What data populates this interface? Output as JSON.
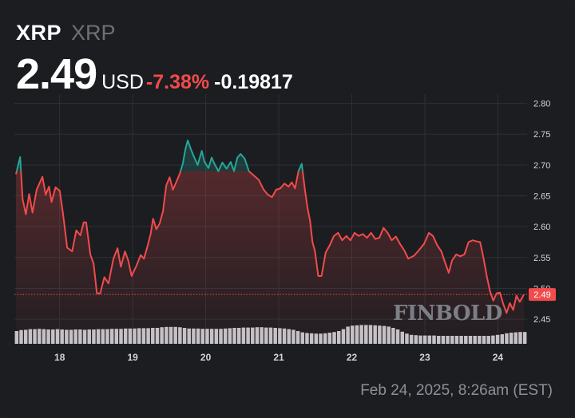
{
  "header": {
    "symbol": "XRP",
    "name": "XRP",
    "price": "2.49",
    "currency": "USD",
    "change_pct": "-7.38%",
    "change_abs": "-0.19817"
  },
  "footer": {
    "timestamp": "Feb 24, 2025, 8:26am (EST)"
  },
  "watermark": "FINBOLD",
  "colors": {
    "up": "#26a69a",
    "down": "#f24b4b",
    "volume": "#d4d4d8",
    "grid": "#2e3036",
    "text": "#d1d4dc",
    "background": "#1c1d21"
  },
  "chart_data": {
    "type": "line",
    "xlabel": "",
    "ylabel": "",
    "ylim": [
      2.41,
      2.815
    ],
    "xlim": [
      17.38,
      24.4
    ],
    "y_ticks": [
      2.45,
      2.5,
      2.55,
      2.6,
      2.65,
      2.7,
      2.75,
      2.8
    ],
    "y_tick_labels": [
      "2.45",
      "2.50",
      "2.55",
      "2.60",
      "2.65",
      "2.70",
      "2.75",
      "2.80"
    ],
    "x_ticks": [
      18,
      19,
      20,
      21,
      22,
      23,
      24
    ],
    "x_tick_labels": [
      "18",
      "19",
      "20",
      "21",
      "22",
      "23",
      "24"
    ],
    "reference_value": 2.69,
    "last_value": 2.49,
    "last_value_label": "2.49",
    "grid": true,
    "series": [
      {
        "values": [
          [
            17.4,
            2.685
          ],
          [
            17.45,
            2.713
          ],
          [
            17.48,
            2.645
          ],
          [
            17.52,
            2.62
          ],
          [
            17.56,
            2.653
          ],
          [
            17.6,
            2.623
          ],
          [
            17.65,
            2.66
          ],
          [
            17.72,
            2.681
          ],
          [
            17.76,
            2.652
          ],
          [
            17.8,
            2.665
          ],
          [
            17.83,
            2.64
          ],
          [
            17.88,
            2.664
          ],
          [
            17.93,
            2.658
          ],
          [
            17.97,
            2.621
          ],
          [
            18.02,
            2.566
          ],
          [
            18.08,
            2.56
          ],
          [
            18.13,
            2.594
          ],
          [
            18.18,
            2.586
          ],
          [
            18.22,
            2.607
          ],
          [
            18.25,
            2.607
          ],
          [
            18.3,
            2.555
          ],
          [
            18.34,
            2.54
          ],
          [
            18.38,
            2.492
          ],
          [
            18.42,
            2.492
          ],
          [
            18.47,
            2.518
          ],
          [
            18.52,
            2.508
          ],
          [
            18.58,
            2.548
          ],
          [
            18.63,
            2.565
          ],
          [
            18.67,
            2.535
          ],
          [
            18.72,
            2.56
          ],
          [
            18.76,
            2.545
          ],
          [
            18.8,
            2.52
          ],
          [
            18.86,
            2.537
          ],
          [
            18.91,
            2.554
          ],
          [
            18.95,
            2.548
          ],
          [
            19.0,
            2.572
          ],
          [
            19.03,
            2.588
          ],
          [
            19.06,
            2.613
          ],
          [
            19.1,
            2.596
          ],
          [
            19.14,
            2.605
          ],
          [
            19.18,
            2.625
          ],
          [
            19.22,
            2.667
          ],
          [
            19.26,
            2.68
          ],
          [
            19.3,
            2.66
          ],
          [
            19.34,
            2.672
          ],
          [
            19.38,
            2.685
          ],
          [
            19.42,
            2.702
          ],
          [
            19.45,
            2.725
          ],
          [
            19.48,
            2.74
          ],
          [
            19.52,
            2.725
          ],
          [
            19.56,
            2.712
          ],
          [
            19.6,
            2.7
          ],
          [
            19.65,
            2.723
          ],
          [
            19.68,
            2.706
          ],
          [
            19.73,
            2.695
          ],
          [
            19.77,
            2.712
          ],
          [
            19.8,
            2.703
          ],
          [
            19.85,
            2.69
          ],
          [
            19.9,
            2.704
          ],
          [
            19.95,
            2.694
          ],
          [
            20.0,
            2.705
          ],
          [
            20.04,
            2.69
          ],
          [
            20.08,
            2.712
          ],
          [
            20.12,
            2.718
          ],
          [
            20.17,
            2.71
          ],
          [
            20.22,
            2.69
          ],
          [
            20.28,
            2.683
          ],
          [
            20.34,
            2.676
          ],
          [
            20.4,
            2.66
          ],
          [
            20.45,
            2.652
          ],
          [
            20.5,
            2.648
          ],
          [
            20.55,
            2.66
          ],
          [
            20.6,
            2.662
          ],
          [
            20.65,
            2.67
          ],
          [
            20.7,
            2.665
          ],
          [
            20.74,
            2.672
          ],
          [
            20.78,
            2.662
          ],
          [
            20.82,
            2.69
          ],
          [
            20.86,
            2.702
          ],
          [
            20.9,
            2.658
          ],
          [
            20.93,
            2.63
          ],
          [
            20.96,
            2.61
          ],
          [
            20.99,
            2.575
          ],
          [
            21.02,
            2.56
          ],
          [
            21.06,
            2.52
          ],
          [
            21.1,
            2.52
          ],
          [
            21.15,
            2.558
          ],
          [
            21.2,
            2.57
          ],
          [
            21.25,
            2.585
          ],
          [
            21.3,
            2.59
          ],
          [
            21.35,
            2.578
          ],
          [
            21.4,
            2.585
          ],
          [
            21.45,
            2.578
          ],
          [
            21.5,
            2.59
          ],
          [
            21.55,
            2.585
          ],
          [
            21.6,
            2.588
          ],
          [
            21.65,
            2.582
          ],
          [
            21.7,
            2.59
          ],
          [
            21.75,
            2.58
          ],
          [
            21.8,
            2.582
          ],
          [
            21.85,
            2.598
          ],
          [
            21.9,
            2.59
          ],
          [
            21.95,
            2.578
          ],
          [
            22.0,
            2.584
          ],
          [
            22.05,
            2.572
          ],
          [
            22.1,
            2.562
          ],
          [
            22.15,
            2.548
          ],
          [
            22.22,
            2.553
          ],
          [
            22.28,
            2.562
          ],
          [
            22.34,
            2.572
          ],
          [
            22.4,
            2.59
          ],
          [
            22.45,
            2.585
          ],
          [
            22.5,
            2.57
          ],
          [
            22.55,
            2.56
          ],
          [
            22.6,
            2.54
          ],
          [
            22.64,
            2.525
          ],
          [
            22.68,
            2.545
          ],
          [
            22.73,
            2.555
          ],
          [
            22.78,
            2.552
          ],
          [
            22.83,
            2.555
          ],
          [
            22.88,
            2.575
          ],
          [
            22.93,
            2.578
          ],
          [
            22.98,
            2.576
          ],
          [
            23.02,
            2.575
          ],
          [
            23.06,
            2.55
          ],
          [
            23.1,
            2.52
          ],
          [
            23.14,
            2.495
          ],
          [
            23.18,
            2.48
          ],
          [
            23.22,
            2.492
          ],
          [
            23.26,
            2.493
          ],
          [
            23.3,
            2.475
          ],
          [
            23.34,
            2.46
          ],
          [
            23.38,
            2.476
          ],
          [
            23.42,
            2.465
          ],
          [
            23.46,
            2.488
          ],
          [
            23.5,
            2.478
          ],
          [
            23.55,
            2.49
          ]
        ]
      }
    ],
    "volume": [
      0.4,
      0.43,
      0.44,
      0.46,
      0.46,
      0.47,
      0.46,
      0.45,
      0.45,
      0.46,
      0.45,
      0.44,
      0.44,
      0.45,
      0.45,
      0.44,
      0.45,
      0.45,
      0.46,
      0.46,
      0.46,
      0.47,
      0.47,
      0.47,
      0.48,
      0.48,
      0.48,
      0.49,
      0.49,
      0.49,
      0.5,
      0.5,
      0.52,
      0.53,
      0.53,
      0.53,
      0.52,
      0.5,
      0.48,
      0.48,
      0.48,
      0.47,
      0.47,
      0.47,
      0.47,
      0.47,
      0.48,
      0.49,
      0.5,
      0.5,
      0.51,
      0.51,
      0.51,
      0.52,
      0.52,
      0.51,
      0.51,
      0.5,
      0.49,
      0.48,
      0.46,
      0.44,
      0.4,
      0.36,
      0.34,
      0.33,
      0.32,
      0.32,
      0.33,
      0.35,
      0.37,
      0.4,
      0.46,
      0.54,
      0.57,
      0.58,
      0.59,
      0.59,
      0.59,
      0.58,
      0.57,
      0.56,
      0.54,
      0.5,
      0.45,
      0.38,
      0.32,
      0.28,
      0.27,
      0.26,
      0.26,
      0.26,
      0.26,
      0.25,
      0.25,
      0.25,
      0.25,
      0.25,
      0.25,
      0.25,
      0.25,
      0.25,
      0.25,
      0.25,
      0.25,
      0.26,
      0.28,
      0.3,
      0.33,
      0.35,
      0.36,
      0.37,
      0.37
    ]
  }
}
